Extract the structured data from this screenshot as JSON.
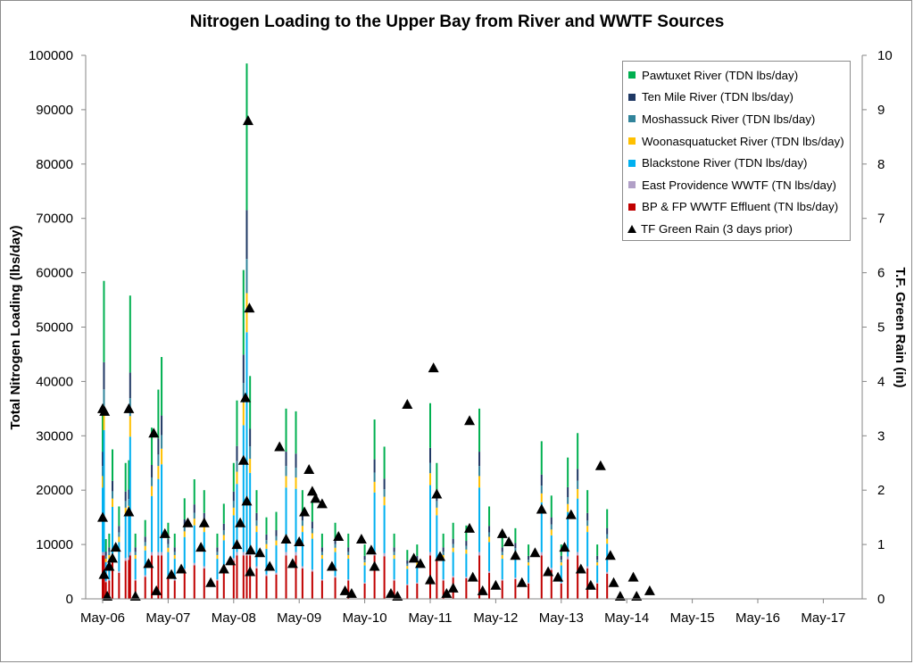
{
  "chart_data": {
    "type": "bar",
    "title": "Nitrogen Loading to the Upper Bay from River and WWTF Sources",
    "ylabel": "Total Nitrogen Loading (lbs/day)",
    "y2label": "T.F. Green Rain (in)",
    "ylim": [
      0,
      100000
    ],
    "y2lim": [
      0,
      10
    ],
    "yticks": [
      "0",
      "10000",
      "20000",
      "30000",
      "40000",
      "50000",
      "60000",
      "70000",
      "80000",
      "90000",
      "100000"
    ],
    "y2ticks": [
      "0",
      "1",
      "2",
      "3",
      "4",
      "5",
      "6",
      "7",
      "8",
      "9",
      "10"
    ],
    "xticks": [
      "May-06",
      "May-07",
      "May-08",
      "May-09",
      "May-10",
      "May-11",
      "May-12",
      "May-13",
      "May-14",
      "May-15",
      "May-16",
      "May-17"
    ],
    "grid": false,
    "legend_position": "top-right",
    "series": [
      {
        "name": "Pawtuxet River (TDN lbs/day)",
        "color": "#00b050"
      },
      {
        "name": "Ten Mile River (TDN lbs/day)",
        "color": "#1f3864"
      },
      {
        "name": "Moshassuck River (TDN lbs/day)",
        "color": "#31849b"
      },
      {
        "name": "Woonasquatucket River (TDN lbs/day)",
        "color": "#ffc000"
      },
      {
        "name": "Blackstone River (TDN lbs/day)",
        "color": "#00b0f0"
      },
      {
        "name": "East Providence WWTF (TN lbs/day)",
        "color": "#b1a0c7"
      },
      {
        "name": "BP & FP WWTF Effluent (TN lbs/day)",
        "color": "#c00000"
      }
    ],
    "rain_series": {
      "name": "TF Green Rain (3 days prior)",
      "color": "#000000"
    },
    "totals": [
      [
        0.0,
        35000
      ],
      [
        0.02,
        58500
      ],
      [
        0.05,
        11000
      ],
      [
        0.1,
        12000
      ],
      [
        0.15,
        27500
      ],
      [
        0.25,
        17000
      ],
      [
        0.35,
        25000
      ],
      [
        0.4,
        25500
      ],
      [
        0.42,
        55800
      ],
      [
        0.5,
        12000
      ],
      [
        0.65,
        14500
      ],
      [
        0.75,
        31500
      ],
      [
        0.85,
        38500
      ],
      [
        0.9,
        44500
      ],
      [
        1.0,
        14000
      ],
      [
        1.1,
        12000
      ],
      [
        1.25,
        18500
      ],
      [
        1.4,
        22000
      ],
      [
        1.55,
        20000
      ],
      [
        1.75,
        12000
      ],
      [
        1.85,
        17500
      ],
      [
        2.0,
        25000
      ],
      [
        2.05,
        36500
      ],
      [
        2.15,
        60500
      ],
      [
        2.2,
        98500
      ],
      [
        2.25,
        41000
      ],
      [
        2.35,
        20000
      ],
      [
        2.5,
        15000
      ],
      [
        2.65,
        16000
      ],
      [
        2.8,
        35000
      ],
      [
        2.95,
        34500
      ],
      [
        3.05,
        20000
      ],
      [
        3.2,
        18000
      ],
      [
        3.35,
        12000
      ],
      [
        3.55,
        14000
      ],
      [
        3.75,
        12000
      ],
      [
        4.0,
        10000
      ],
      [
        4.15,
        33000
      ],
      [
        4.3,
        28000
      ],
      [
        4.45,
        12000
      ],
      [
        4.65,
        9000
      ],
      [
        4.8,
        10000
      ],
      [
        5.0,
        36000
      ],
      [
        5.1,
        25000
      ],
      [
        5.2,
        12000
      ],
      [
        5.35,
        14000
      ],
      [
        5.55,
        13500
      ],
      [
        5.75,
        35000
      ],
      [
        5.9,
        17000
      ],
      [
        6.1,
        12000
      ],
      [
        6.3,
        13000
      ],
      [
        6.5,
        10000
      ],
      [
        6.7,
        29000
      ],
      [
        6.85,
        19000
      ],
      [
        7.0,
        10000
      ],
      [
        7.1,
        26000
      ],
      [
        7.25,
        30500
      ],
      [
        7.4,
        20000
      ],
      [
        7.55,
        10000
      ],
      [
        7.7,
        16500
      ]
    ],
    "rain": [
      [
        0.0,
        1.5
      ],
      [
        0.0,
        3.5
      ],
      [
        0.02,
        0.45
      ],
      [
        0.03,
        3.45
      ],
      [
        0.07,
        0.05
      ],
      [
        0.1,
        0.6
      ],
      [
        0.15,
        0.75
      ],
      [
        0.2,
        0.95
      ],
      [
        0.4,
        3.5
      ],
      [
        0.4,
        1.6
      ],
      [
        0.5,
        0.05
      ],
      [
        0.7,
        0.65
      ],
      [
        0.78,
        3.05
      ],
      [
        0.82,
        0.15
      ],
      [
        0.95,
        1.2
      ],
      [
        1.05,
        0.45
      ],
      [
        1.2,
        0.55
      ],
      [
        1.3,
        1.4
      ],
      [
        1.5,
        0.95
      ],
      [
        1.55,
        1.4
      ],
      [
        1.65,
        0.3
      ],
      [
        1.85,
        0.55
      ],
      [
        1.95,
        0.7
      ],
      [
        2.05,
        1.0
      ],
      [
        2.1,
        1.4
      ],
      [
        2.15,
        2.55
      ],
      [
        2.18,
        3.7
      ],
      [
        2.2,
        1.8
      ],
      [
        2.22,
        8.8
      ],
      [
        2.24,
        5.35
      ],
      [
        2.25,
        0.5
      ],
      [
        2.26,
        0.9
      ],
      [
        2.4,
        0.85
      ],
      [
        2.55,
        0.6
      ],
      [
        2.7,
        2.8
      ],
      [
        2.8,
        1.1
      ],
      [
        2.9,
        0.65
      ],
      [
        3.0,
        1.05
      ],
      [
        3.08,
        1.6
      ],
      [
        3.15,
        2.38
      ],
      [
        3.2,
        1.98
      ],
      [
        3.25,
        1.85
      ],
      [
        3.35,
        1.75
      ],
      [
        3.5,
        0.6
      ],
      [
        3.6,
        1.15
      ],
      [
        3.7,
        0.15
      ],
      [
        3.8,
        0.1
      ],
      [
        3.95,
        1.1
      ],
      [
        4.1,
        0.9
      ],
      [
        4.15,
        0.6
      ],
      [
        4.4,
        0.1
      ],
      [
        4.5,
        0.05
      ],
      [
        4.65,
        3.58
      ],
      [
        4.75,
        0.75
      ],
      [
        4.85,
        0.65
      ],
      [
        5.0,
        0.35
      ],
      [
        5.05,
        4.25
      ],
      [
        5.1,
        1.93
      ],
      [
        5.15,
        0.78
      ],
      [
        5.25,
        0.1
      ],
      [
        5.35,
        0.2
      ],
      [
        5.6,
        3.28
      ],
      [
        5.6,
        1.3
      ],
      [
        5.65,
        0.4
      ],
      [
        5.8,
        0.15
      ],
      [
        6.0,
        0.25
      ],
      [
        6.1,
        1.2
      ],
      [
        6.2,
        1.05
      ],
      [
        6.3,
        0.8
      ],
      [
        6.4,
        0.3
      ],
      [
        6.6,
        0.85
      ],
      [
        6.7,
        1.65
      ],
      [
        6.8,
        0.5
      ],
      [
        6.95,
        0.4
      ],
      [
        7.05,
        0.95
      ],
      [
        7.15,
        1.55
      ],
      [
        7.3,
        0.55
      ],
      [
        7.45,
        0.25
      ],
      [
        7.6,
        2.45
      ],
      [
        7.75,
        0.8
      ],
      [
        7.8,
        0.3
      ],
      [
        7.9,
        0.05
      ],
      [
        8.1,
        0.4
      ],
      [
        8.15,
        0.05
      ],
      [
        8.35,
        0.15
      ]
    ]
  }
}
